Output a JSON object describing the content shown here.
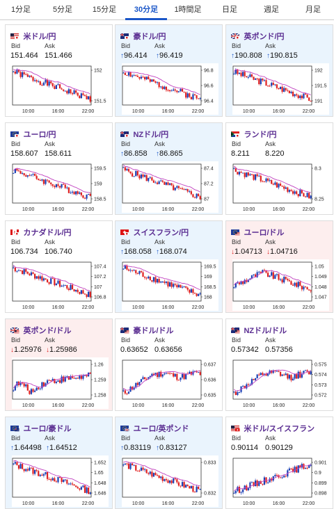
{
  "tabs": [
    {
      "label": "1分足",
      "active": false
    },
    {
      "label": "5分足",
      "active": false
    },
    {
      "label": "15分足",
      "active": false
    },
    {
      "label": "30分足",
      "active": true
    },
    {
      "label": "1時間足",
      "active": false
    },
    {
      "label": "日足",
      "active": false
    },
    {
      "label": "週足",
      "active": false
    },
    {
      "label": "月足",
      "active": false
    }
  ],
  "labels": {
    "bid": "Bid",
    "ask": "Ask"
  },
  "x_ticks": [
    "10:00",
    "16:00",
    "22:00"
  ],
  "colors": {
    "up_candle": "#1a3fb5",
    "down_candle": "#e02020",
    "ma_line": "#c040c0",
    "title": "#5a2d91",
    "arrow_up": "#1a56c8",
    "arrow_down": "#dd2222"
  },
  "pairs": [
    {
      "name": "米ドル/円",
      "flag": "us",
      "dir": "none",
      "bid": "151.464",
      "ask": "151.466",
      "yticks": [
        "152",
        "151.5"
      ],
      "trend": "down",
      "seed": 1
    },
    {
      "name": "豪ドル/円",
      "flag": "au",
      "dir": "up",
      "bid": "96.414",
      "ask": "96.419",
      "yticks": [
        "96.8",
        "96.6",
        "96.4"
      ],
      "trend": "down",
      "seed": 2
    },
    {
      "name": "英ポンド/円",
      "flag": "gb",
      "dir": "up",
      "bid": "190.808",
      "ask": "190.815",
      "yticks": [
        "192",
        "191.5",
        "191"
      ],
      "trend": "down",
      "seed": 3
    },
    {
      "name": "ユーロ/円",
      "flag": "eu",
      "dir": "none",
      "bid": "158.607",
      "ask": "158.611",
      "yticks": [
        "159.5",
        "159",
        "158.5"
      ],
      "trend": "down",
      "seed": 4
    },
    {
      "name": "NZドル/円",
      "flag": "nz",
      "dir": "up",
      "bid": "86.858",
      "ask": "86.865",
      "yticks": [
        "87.4",
        "87.2",
        "87"
      ],
      "trend": "down",
      "seed": 5
    },
    {
      "name": "ランド/円",
      "flag": "za",
      "dir": "none",
      "bid": "8.211",
      "ask": "8.220",
      "yticks": [
        "8.3",
        "8.25"
      ],
      "trend": "down",
      "seed": 6
    },
    {
      "name": "カナダドル/円",
      "flag": "ca",
      "dir": "none",
      "bid": "106.734",
      "ask": "106.740",
      "yticks": [
        "107.4",
        "107.2",
        "107",
        "106.8"
      ],
      "trend": "down",
      "seed": 7
    },
    {
      "name": "スイスフラン/円",
      "flag": "ch",
      "dir": "up",
      "bid": "168.058",
      "ask": "168.074",
      "yticks": [
        "169.5",
        "169",
        "168.5",
        "168"
      ],
      "trend": "down",
      "seed": 8
    },
    {
      "name": "ユーロ/ドル",
      "flag": "eu-us",
      "dir": "down",
      "bid": "1.04713",
      "ask": "1.04716",
      "yticks": [
        "1.05",
        "1.049",
        "1.048",
        "1.047"
      ],
      "trend": "humpdown",
      "seed": 9
    },
    {
      "name": "英ポンド/ドル",
      "flag": "gb-us",
      "dir": "down",
      "bid": "1.25976",
      "ask": "1.25986",
      "yticks": [
        "1.26",
        "1.259",
        "1.258"
      ],
      "trend": "flatup",
      "seed": 10
    },
    {
      "name": "豪ドル/ドル",
      "flag": "au-us",
      "dir": "none",
      "bid": "0.63652",
      "ask": "0.63656",
      "yticks": [
        "0.637",
        "0.636",
        "0.635"
      ],
      "trend": "upflat",
      "seed": 11
    },
    {
      "name": "NZドル/ドル",
      "flag": "nz-us",
      "dir": "none",
      "bid": "0.57342",
      "ask": "0.57356",
      "yticks": [
        "0.575",
        "0.574",
        "0.573",
        "0.572"
      ],
      "trend": "upflat",
      "seed": 12
    },
    {
      "name": "ユーロ/豪ドル",
      "flag": "eu-au",
      "dir": "up",
      "bid": "1.64498",
      "ask": "1.64512",
      "yticks": [
        "1.652",
        "1.65",
        "1.648",
        "1.646"
      ],
      "trend": "down",
      "seed": 13
    },
    {
      "name": "ユーロ/英ポンド",
      "flag": "eu-gb",
      "dir": "up",
      "bid": "0.83119",
      "ask": "0.83127",
      "yticks": [
        "0.833",
        "0.832"
      ],
      "trend": "down",
      "seed": 14
    },
    {
      "name": "米ドル/スイスフラン",
      "flag": "us-ch",
      "dir": "none",
      "bid": "0.90114",
      "ask": "0.90129",
      "yticks": [
        "0.901",
        "0.9",
        "0.899",
        "0.898"
      ],
      "trend": "up",
      "seed": 15
    }
  ]
}
